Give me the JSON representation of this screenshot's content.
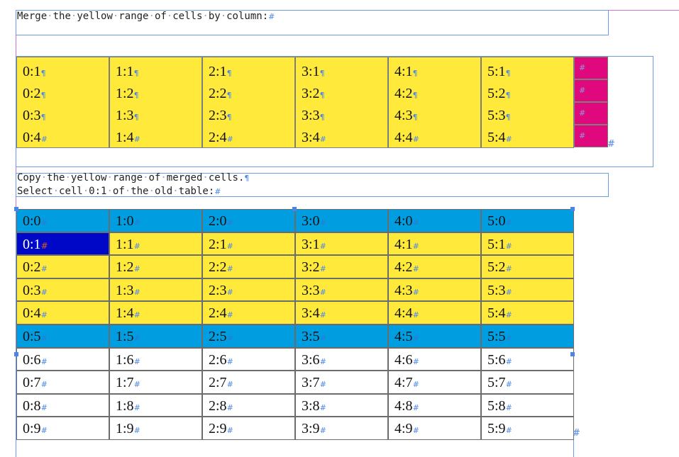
{
  "caption1": {
    "words": [
      "Merge",
      "the",
      "yellow",
      "range",
      "of",
      "cells",
      "by",
      "column:"
    ],
    "end": "#"
  },
  "table1": {
    "columns": [
      {
        "lines": [
          {
            "text": "0:1",
            "mark": "¶"
          },
          {
            "text": "0:2",
            "mark": "¶"
          },
          {
            "text": "0:3",
            "mark": "¶"
          },
          {
            "text": "0:4",
            "mark": "#"
          }
        ]
      },
      {
        "lines": [
          {
            "text": "1:1",
            "mark": "¶"
          },
          {
            "text": "1:2",
            "mark": "¶"
          },
          {
            "text": "1:3",
            "mark": "¶"
          },
          {
            "text": "1:4",
            "mark": "#"
          }
        ]
      },
      {
        "lines": [
          {
            "text": "2:1",
            "mark": "¶"
          },
          {
            "text": "2:2",
            "mark": "¶"
          },
          {
            "text": "2:3",
            "mark": "¶"
          },
          {
            "text": "2:4",
            "mark": "#"
          }
        ]
      },
      {
        "lines": [
          {
            "text": "3:1",
            "mark": "¶"
          },
          {
            "text": "3:2",
            "mark": "¶"
          },
          {
            "text": "3:3",
            "mark": "¶"
          },
          {
            "text": "3:4",
            "mark": "#"
          }
        ]
      },
      {
        "lines": [
          {
            "text": "4:1",
            "mark": "¶"
          },
          {
            "text": "4:2",
            "mark": "¶"
          },
          {
            "text": "4:3",
            "mark": "¶"
          },
          {
            "text": "4:4",
            "mark": "#"
          }
        ]
      },
      {
        "lines": [
          {
            "text": "5:1",
            "mark": "¶"
          },
          {
            "text": "5:2",
            "mark": "¶"
          },
          {
            "text": "5:3",
            "mark": "¶"
          },
          {
            "text": "5:4",
            "mark": "#"
          }
        ]
      }
    ],
    "pink_cells": [
      "#",
      "#",
      "#",
      "#"
    ],
    "end_mark": "#"
  },
  "caption2": {
    "line1_words": [
      "Copy",
      "the",
      "yellow",
      "range",
      "of",
      "merged",
      "cells."
    ],
    "line1_end": "¶",
    "line2_words": [
      "Select",
      "cell",
      "0:1",
      "of",
      "the",
      "old",
      "table:"
    ],
    "line2_end": "#"
  },
  "table2": {
    "rows": [
      {
        "style": "blue",
        "cells": [
          "0:0",
          "1:0",
          "2:0",
          "3:0",
          "4:0",
          "5:0"
        ]
      },
      {
        "style": "yellow",
        "cells": [
          "0:1",
          "1:1",
          "2:1",
          "3:1",
          "4:1",
          "5:1"
        ],
        "selected_col": 0
      },
      {
        "style": "yellow",
        "cells": [
          "0:2",
          "1:2",
          "2:2",
          "3:2",
          "4:2",
          "5:2"
        ]
      },
      {
        "style": "yellow",
        "cells": [
          "0:3",
          "1:3",
          "2:3",
          "3:3",
          "4:3",
          "5:3"
        ]
      },
      {
        "style": "yellow",
        "cells": [
          "0:4",
          "1:4",
          "2:4",
          "3:4",
          "4:4",
          "5:4"
        ]
      },
      {
        "style": "blue",
        "cells": [
          "0:5",
          "1:5",
          "2:5",
          "3:5",
          "4:5",
          "5:5"
        ]
      },
      {
        "style": "white",
        "cells": [
          "0:6",
          "1:6",
          "2:6",
          "3:6",
          "4:6",
          "5:6"
        ]
      },
      {
        "style": "white",
        "cells": [
          "0:7",
          "1:7",
          "2:7",
          "3:7",
          "4:7",
          "5:7"
        ]
      },
      {
        "style": "white",
        "cells": [
          "0:8",
          "1:8",
          "2:8",
          "3:8",
          "4:8",
          "5:8"
        ]
      },
      {
        "style": "white",
        "cells": [
          "0:9",
          "1:9",
          "2:9",
          "3:9",
          "4:9",
          "5:9"
        ]
      }
    ],
    "cell_mark": "#",
    "end_mark": "#"
  },
  "colors": {
    "yellow": "#ffe93b",
    "blue": "#009ee0",
    "pink": "#e0087d",
    "selection": "#0008c8",
    "guide": "#d070d8",
    "frame": "#6f9be0"
  }
}
